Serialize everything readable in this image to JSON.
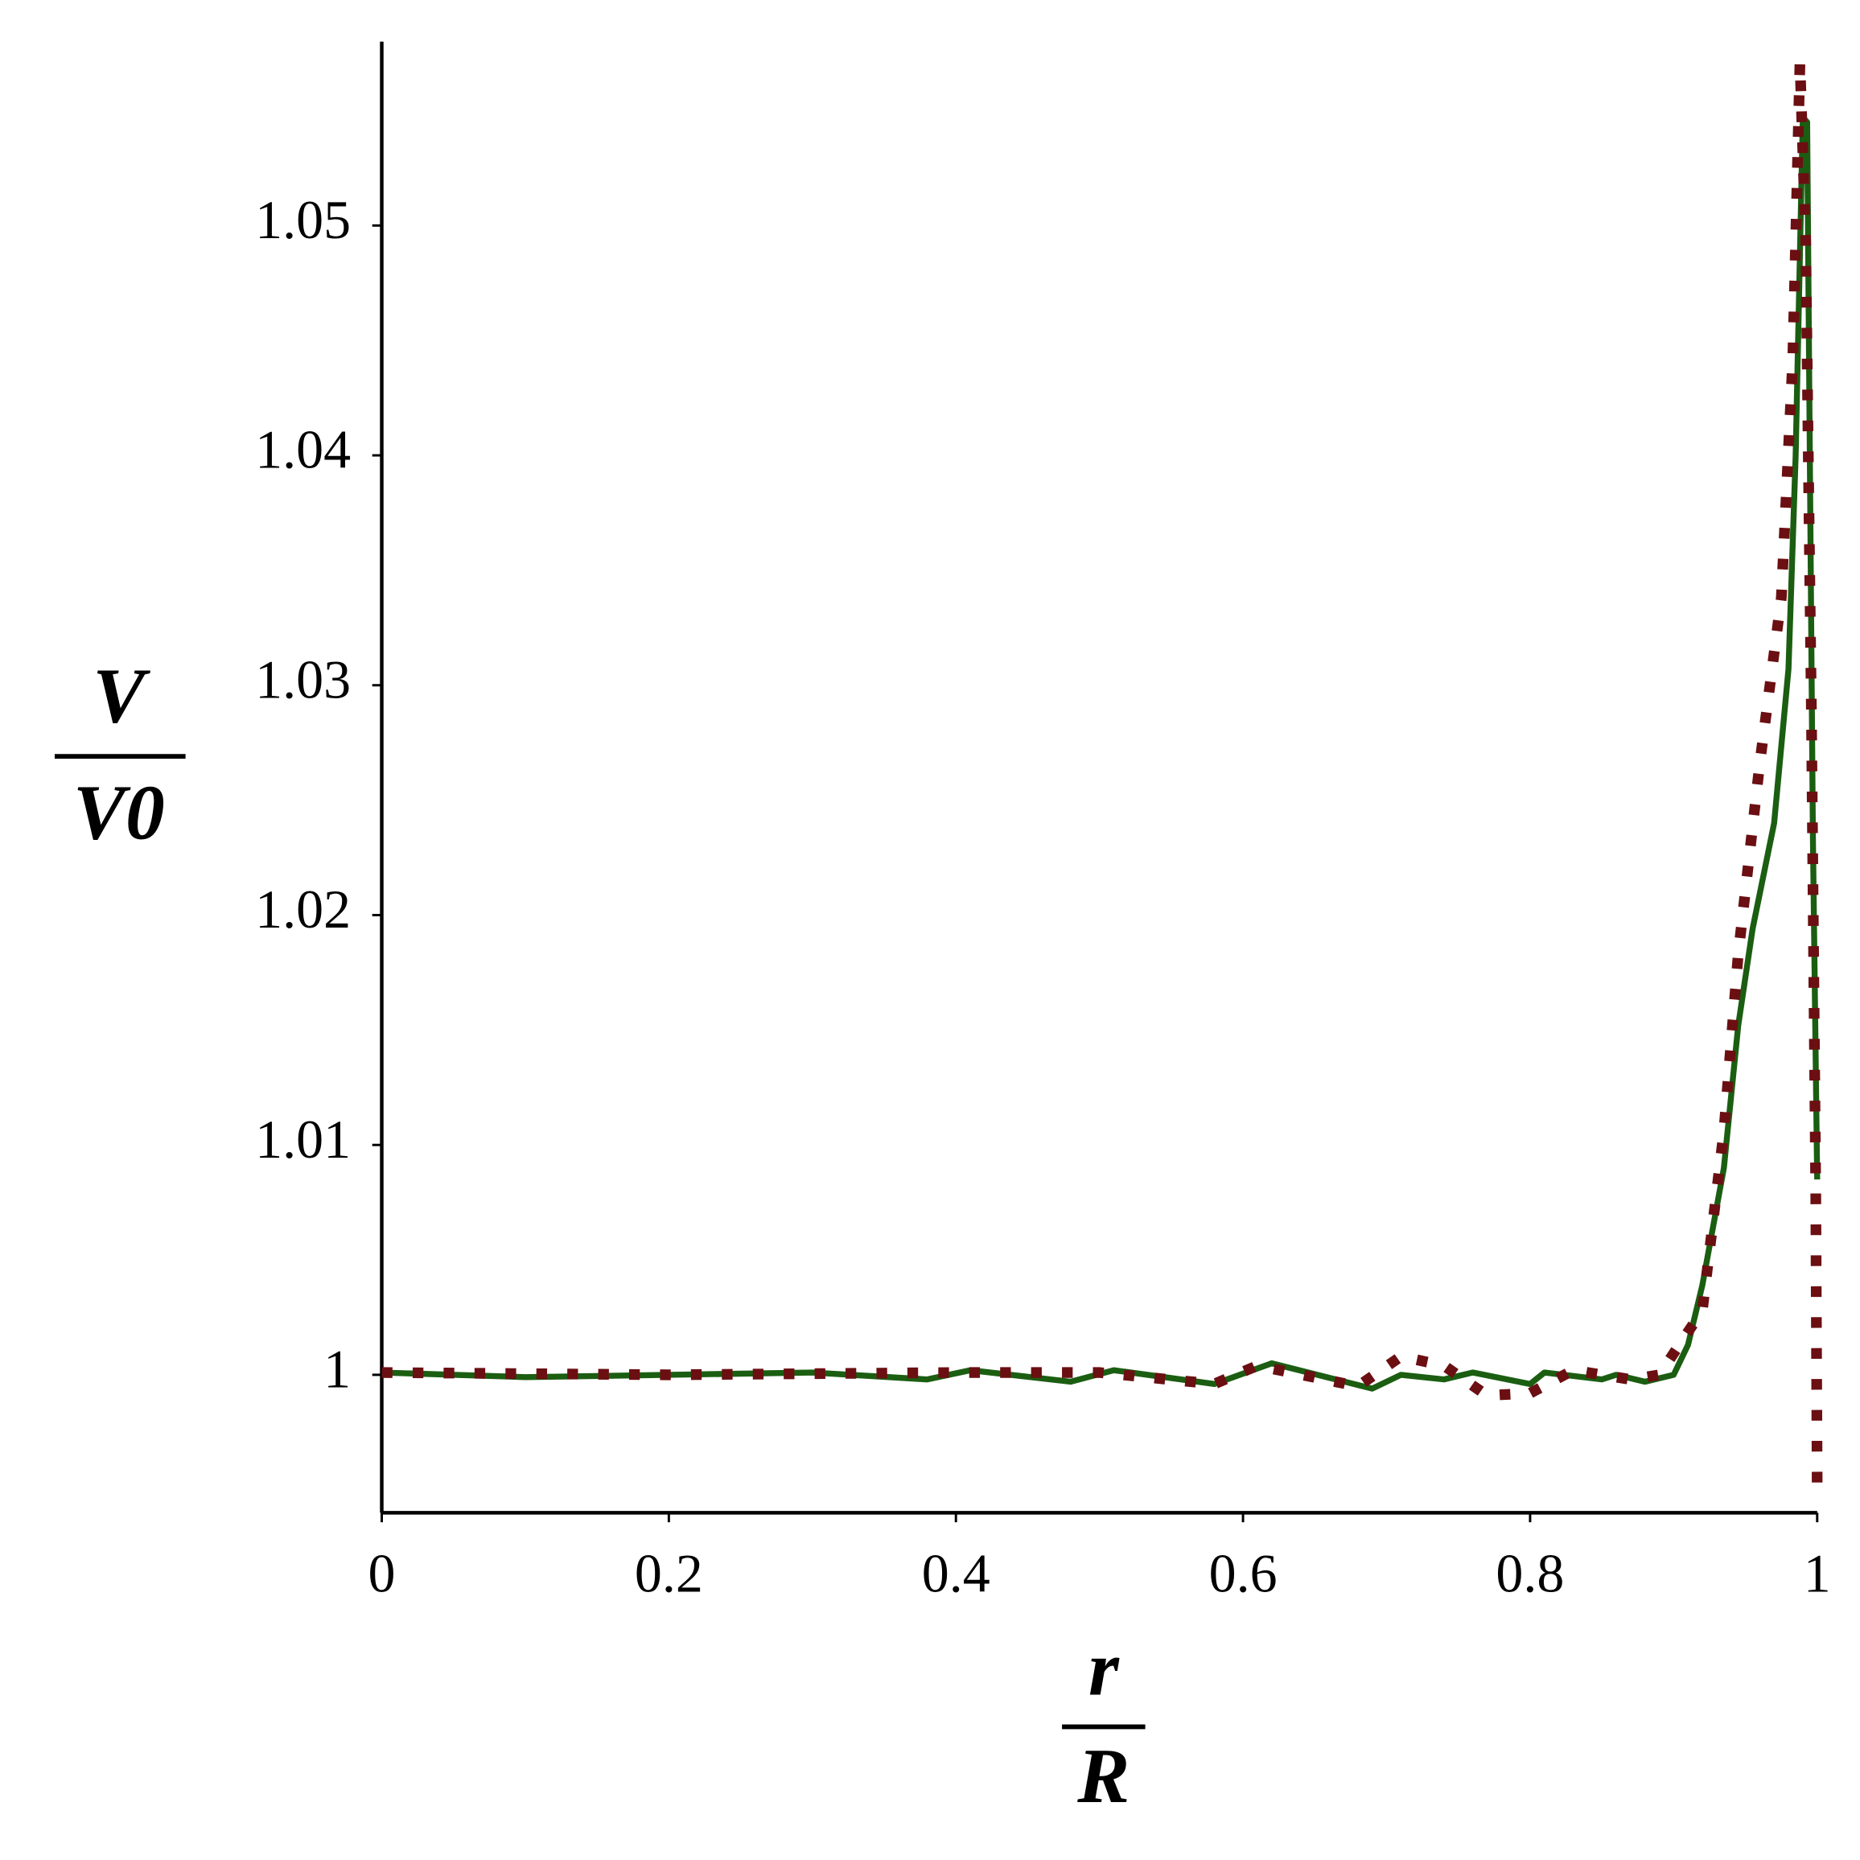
{
  "chart_data": {
    "type": "line",
    "xlabel": {
      "numerator": "r",
      "denominator": "R"
    },
    "ylabel": {
      "numerator": "V",
      "denominator": "V0"
    },
    "xlim": [
      0,
      1
    ],
    "ylim": [
      0.994,
      1.058
    ],
    "xticks": [
      0,
      0.2,
      0.4,
      0.6,
      0.8,
      1
    ],
    "yticks": [
      1,
      1.01,
      1.02,
      1.03,
      1.04,
      1.05
    ],
    "series": [
      {
        "color": "#1b5e12",
        "style": "solid",
        "x": [
          0,
          0.1,
          0.2,
          0.3,
          0.38,
          0.41,
          0.48,
          0.51,
          0.58,
          0.62,
          0.69,
          0.71,
          0.74,
          0.76,
          0.8,
          0.81,
          0.85,
          0.86,
          0.88,
          0.9,
          0.91,
          0.92,
          0.935,
          0.945,
          0.955,
          0.97,
          0.98,
          0.985,
          0.99,
          0.993,
          0.997,
          1.0
        ],
        "values": [
          1.0001,
          0.9999,
          1.0,
          1.0001,
          0.9998,
          1.0002,
          0.9997,
          1.0002,
          0.9996,
          1.0005,
          0.9994,
          1.0,
          0.9998,
          1.0001,
          0.9996,
          1.0001,
          0.9998,
          1.0,
          0.9997,
          1.0,
          1.0013,
          1.0039,
          1.009,
          1.0152,
          1.0194,
          1.024,
          1.0307,
          1.04,
          1.0547,
          1.0545,
          1.0235,
          1.0085
        ]
      },
      {
        "color": "#6b0f12",
        "style": "dotted",
        "x": [
          0,
          0.2,
          0.4,
          0.5,
          0.58,
          0.61,
          0.68,
          0.71,
          0.74,
          0.77,
          0.8,
          0.83,
          0.87,
          0.89,
          0.92,
          0.935,
          0.945,
          0.96,
          0.975,
          0.983,
          0.988,
          0.992,
          0.996,
          0.999,
          1.0
        ],
        "values": [
          1.0001,
          1.0,
          1.0001,
          1.0001,
          0.9996,
          1.0004,
          0.9995,
          1.0008,
          1.0004,
          0.9991,
          0.9992,
          1.0002,
          0.9998,
          1.0,
          1.0028,
          1.0106,
          1.0183,
          1.0266,
          1.0338,
          1.0442,
          1.0571,
          1.0493,
          1.0287,
          1.008,
          0.9951
        ]
      }
    ]
  }
}
